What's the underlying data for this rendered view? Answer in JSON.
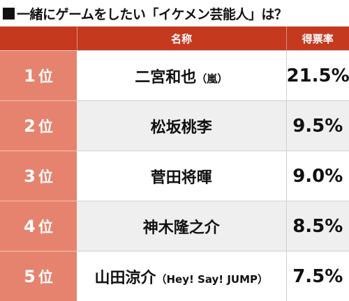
{
  "title": "一緒にゲームをしたい「イケメン芸能人」は？",
  "headers": {
    "rank": "",
    "name": "名称",
    "rate": "得票率"
  },
  "rank_unit": "位",
  "rows": [
    {
      "rank": "1",
      "name": "二宮和也",
      "note": "（嵐）",
      "rate": "21.5%"
    },
    {
      "rank": "2",
      "name": "松坂桃李",
      "note": "",
      "rate": "9.5%"
    },
    {
      "rank": "3",
      "name": "菅田将暉",
      "note": "",
      "rate": "9.0%"
    },
    {
      "rank": "4",
      "name": "神木隆之介",
      "note": "",
      "rate": "8.5%"
    },
    {
      "rank": "5",
      "name": "山田涼介",
      "note": "（Hey! Say! JUMP）",
      "rate": "7.5%"
    }
  ],
  "chart_data": {
    "type": "table",
    "title": "一緒にゲームをしたい「イケメン芸能人」は？",
    "columns": [
      "",
      "名称",
      "得票率"
    ],
    "rows": [
      [
        "1位",
        "二宮和也（嵐）",
        "21.5%"
      ],
      [
        "2位",
        "松坂桃李",
        "9.5%"
      ],
      [
        "3位",
        "菅田将暉",
        "9.0%"
      ],
      [
        "4位",
        "神木隆之介",
        "8.5%"
      ],
      [
        "5位",
        "山田涼介（Hey! Say! JUMP）",
        "7.5%"
      ]
    ]
  },
  "colors": {
    "header_red": "#c5391f",
    "rank_salmon": "#e6836e",
    "row_alt_gray": "#efefef"
  }
}
